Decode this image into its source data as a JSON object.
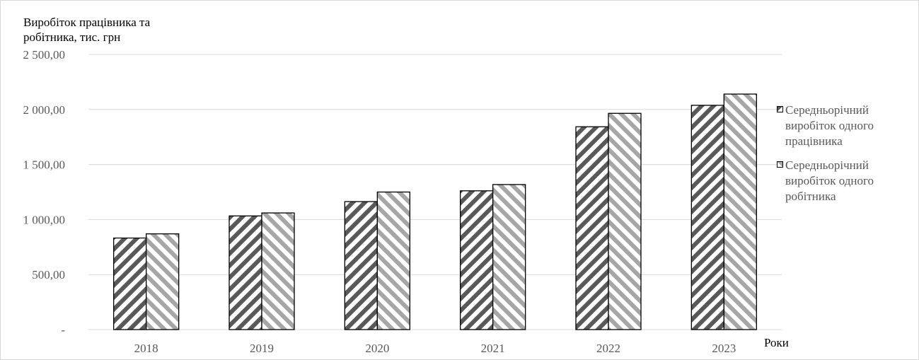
{
  "chart_data": {
    "type": "bar",
    "title": "",
    "ylabel": "Виробіток працівника та робітника, тис. грн",
    "ylabel_lines": [
      "Виробіток працівника та",
      "робітника, тис. грн"
    ],
    "xlabel": "Роки",
    "categories": [
      "2018",
      "2019",
      "2020",
      "2021",
      "2022",
      "2023"
    ],
    "series": [
      {
        "name": "Середньорічний виробіток одного працівника",
        "name_lines": [
          "Середньорічний",
          "виробіток одного",
          "працівника"
        ],
        "values": [
          832,
          1033,
          1163,
          1261,
          1843,
          2038
        ],
        "color": "#595959",
        "pattern": "diagonal-dark"
      },
      {
        "name": "Середньорічний виробіток одного робітника",
        "name_lines": [
          "Середньорічний",
          "виробіток одного",
          "робітника"
        ],
        "values": [
          870,
          1060,
          1250,
          1318,
          1965,
          2140
        ],
        "color": "#a6a6a6",
        "pattern": "diagonal-light"
      }
    ],
    "ylim": [
      0,
      2500
    ],
    "yticks": [
      {
        "value": 0,
        "label": "-"
      },
      {
        "value": 500,
        "label": "500,00"
      },
      {
        "value": 1000,
        "label": "1 000,00"
      },
      {
        "value": 1500,
        "label": "1 500,00"
      },
      {
        "value": 2000,
        "label": "2 000,00"
      },
      {
        "value": 2500,
        "label": "2 500,00"
      }
    ],
    "grid": true,
    "legend_position": "right"
  }
}
